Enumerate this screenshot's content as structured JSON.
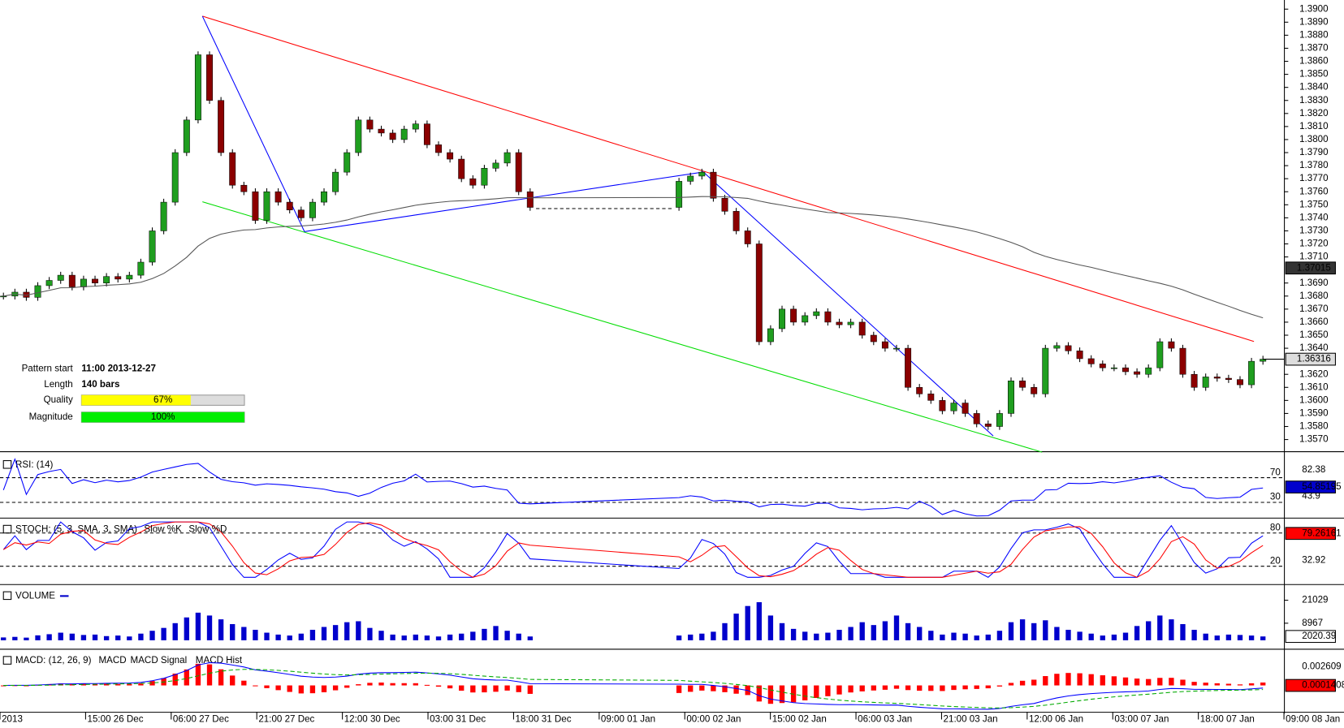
{
  "chart_data": {
    "type": "candlestick",
    "ylim": [
      1.3561,
      1.3907
    ],
    "yticks": [
      {
        "value": 1.357,
        "label": "1.3570"
      },
      {
        "value": 1.358,
        "label": "1.3580"
      },
      {
        "value": 1.359,
        "label": "1.3590"
      },
      {
        "value": 1.36,
        "label": "1.3600"
      },
      {
        "value": 1.361,
        "label": "1.3610"
      },
      {
        "value": 1.362,
        "label": "1.3620"
      },
      {
        "value": 1.364,
        "label": "1.3640"
      },
      {
        "value": 1.365,
        "label": "1.3650"
      },
      {
        "value": 1.366,
        "label": "1.3660"
      },
      {
        "value": 1.367,
        "label": "1.3670"
      },
      {
        "value": 1.368,
        "label": "1.3680"
      },
      {
        "value": 1.369,
        "label": "1.3690"
      },
      {
        "value": 1.371,
        "label": "1.3710"
      },
      {
        "value": 1.372,
        "label": "1.3720"
      },
      {
        "value": 1.373,
        "label": "1.3730"
      },
      {
        "value": 1.374,
        "label": "1.3740"
      },
      {
        "value": 1.375,
        "label": "1.3750"
      },
      {
        "value": 1.376,
        "label": "1.3760"
      },
      {
        "value": 1.377,
        "label": "1.3770"
      },
      {
        "value": 1.378,
        "label": "1.3780"
      },
      {
        "value": 1.379,
        "label": "1.3790"
      },
      {
        "value": 1.38,
        "label": "1.3800"
      },
      {
        "value": 1.381,
        "label": "1.3810"
      },
      {
        "value": 1.382,
        "label": "1.3820"
      },
      {
        "value": 1.383,
        "label": "1.3830"
      },
      {
        "value": 1.384,
        "label": "1.3840"
      },
      {
        "value": 1.385,
        "label": "1.3850"
      },
      {
        "value": 1.386,
        "label": "1.3860"
      },
      {
        "value": 1.387,
        "label": "1.3870"
      },
      {
        "value": 1.388,
        "label": "1.3880"
      },
      {
        "value": 1.389,
        "label": "1.3890"
      },
      {
        "value": 1.39,
        "label": "1.3900"
      }
    ],
    "time_labels": [
      "2013",
      "15:00 26 Dec",
      "06:00 27 Dec",
      "21:00 27 Dec",
      "12:00 30 Dec",
      "03:00 31 Dec",
      "18:00 31 Dec",
      "09:00 01 Jan",
      "00:00 02 Jan",
      "15:00 02 Jan",
      "06:00 03 Jan",
      "21:00 03 Jan",
      "12:00 06 Jan",
      "03:00 07 Jan",
      "18:00 07 Jan",
      "09:00 08 Jan"
    ],
    "close": [
      1.368,
      1.3683,
      1.3679,
      1.3688,
      1.3692,
      1.3696,
      1.3687,
      1.3693,
      1.369,
      1.3695,
      1.3693,
      1.3696,
      1.3706,
      1.373,
      1.3752,
      1.379,
      1.3815,
      1.3865,
      1.383,
      1.379,
      1.3765,
      1.376,
      1.3738,
      1.376,
      1.3752,
      1.3746,
      1.374,
      1.3752,
      1.376,
      1.3775,
      1.379,
      1.3815,
      1.3808,
      1.3805,
      1.38,
      1.3808,
      1.3812,
      1.3796,
      1.379,
      1.3785,
      1.377,
      1.3765,
      1.3778,
      1.3782,
      1.379,
      1.376,
      1.3748,
      null,
      null,
      null,
      null,
      null,
      null,
      null,
      null,
      null,
      null,
      null,
      null,
      1.3768,
      1.3772,
      1.3775,
      1.3755,
      1.3745,
      1.373,
      1.372,
      1.3645,
      1.3655,
      1.367,
      1.366,
      1.3665,
      1.3668,
      1.366,
      1.3658,
      1.366,
      1.365,
      1.3645,
      1.364,
      1.364,
      1.361,
      1.3605,
      1.36,
      1.3592,
      1.3598,
      1.359,
      1.3582,
      1.358,
      1.359,
      1.3615,
      1.361,
      1.3605,
      1.364,
      1.3642,
      1.3638,
      1.3632,
      1.3628,
      1.3625,
      1.3625,
      1.3622,
      1.362,
      1.3625,
      1.3645,
      1.364,
      1.362,
      1.361,
      1.3618,
      1.3617,
      1.3616,
      1.3612,
      1.363,
      1.36316
    ],
    "up_color": "#1f9e1f",
    "down_color": "#8b0000",
    "ma_last": 1.37015,
    "pattern": {
      "start_label": "Pattern start",
      "start": "11:00 2013-12-27",
      "length_label": "Length",
      "length": "140 bars",
      "quality_label": "Quality",
      "quality": {
        "value": 67,
        "label": "67%"
      },
      "magnitude_label": "Magnitude",
      "magnitude": {
        "value": 100,
        "label": "100%"
      }
    },
    "rsi": {
      "title": "RSI: (14)",
      "levels": [
        70,
        30
      ],
      "high": 82.38,
      "low": 43.9,
      "current": 54.85195
    },
    "stoch": {
      "title": "STOCH: (5, 3, SMA, 3, SMA)",
      "k_name": "Slow %K",
      "d_name": "Slow %D",
      "levels": [
        80,
        20
      ],
      "low": 32.92,
      "current": 79.26161
    },
    "volume": {
      "title": "VOLUME",
      "ylim": [
        0,
        28600
      ],
      "yticks": [
        21029,
        8967
      ],
      "color": "#0000cc",
      "values": [
        1500,
        1800,
        1400,
        2600,
        3200,
        4000,
        3500,
        2800,
        3000,
        2200,
        2500,
        2000,
        3500,
        5000,
        6500,
        9000,
        12000,
        14500,
        13000,
        11000,
        8500,
        7000,
        5500,
        4000,
        3000,
        2500,
        3500,
        5500,
        7000,
        8000,
        9500,
        10000,
        6500,
        5000,
        3000,
        2500,
        3000,
        2500,
        2000,
        3000,
        3500,
        4500,
        6000,
        7500,
        5000,
        3500,
        2000,
        null,
        null,
        null,
        null,
        null,
        null,
        null,
        null,
        null,
        null,
        null,
        null,
        2500,
        3000,
        3500,
        4500,
        9000,
        14000,
        18000,
        20000,
        13000,
        9000,
        6000,
        4500,
        3500,
        4000,
        5500,
        7000,
        9500,
        8000,
        10000,
        13000,
        9000,
        7000,
        5000,
        3000,
        4000,
        3500,
        2500,
        3000,
        5000,
        9500,
        11000,
        9000,
        10500,
        7000,
        5500,
        4500,
        3500,
        2500,
        3000,
        4000,
        7500,
        10000,
        13000,
        11000,
        8500,
        5500,
        3500,
        2500,
        3000,
        2800,
        2500,
        2020.39
      ]
    },
    "macd": {
      "title": "MACD: (12, 26, 9)",
      "macd_name": "MACD",
      "signal_name": "MACD Signal",
      "hist_name": "MACD Hist",
      "high": 0.002609,
      "current": 0.0001408
    }
  }
}
